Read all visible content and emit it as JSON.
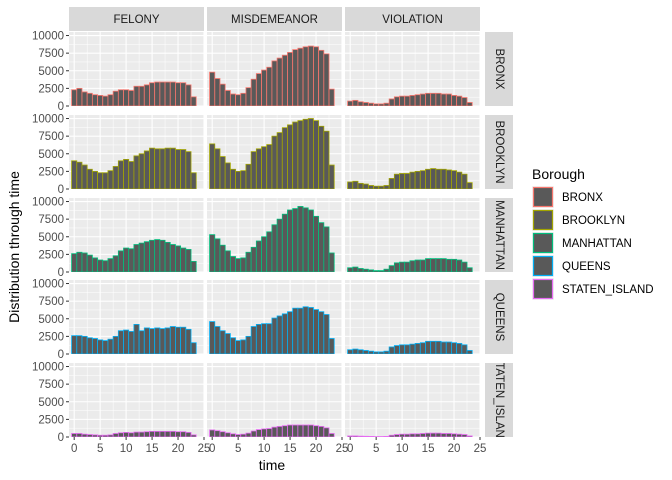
{
  "chart_data": {
    "type": "bar",
    "facet_cols": [
      "FELONY",
      "MISDEMEANOR",
      "VIOLATION"
    ],
    "facet_rows": [
      "BRONX",
      "BROOKLYN",
      "MANHATTAN",
      "QUEENS",
      "STATEN_ISLAND"
    ],
    "facet_row_labels": [
      "BRONX",
      "BROOKLYN",
      "MANHATTAN",
      "QUEENS",
      "TATEN_ISLAN"
    ],
    "xlabel": "time",
    "ylabel": "Distribution through time",
    "xlim": [
      -1,
      25
    ],
    "ylim": [
      0,
      10500
    ],
    "x_ticks": [
      0,
      5,
      10,
      15,
      20,
      25
    ],
    "y_ticks": [
      0,
      2500,
      5000,
      7500,
      10000
    ],
    "legend": {
      "title": "Borough",
      "position": "right",
      "items": [
        "BRONX",
        "BROOKLYN",
        "MANHATTAN",
        "QUEENS",
        "STATEN_ISLAND"
      ]
    },
    "colors": {
      "fill": "#595959",
      "panel_bg": "#ebebeb",
      "strip_bg": "#d9d9d9",
      "grid": "#ffffff",
      "BRONX": "#F8766D",
      "BROOKLYN": "#A3A500",
      "MANHATTAN": "#00BF7D",
      "QUEENS": "#00B0F6",
      "STATEN_ISLAND": "#E76BF3"
    },
    "x": [
      0,
      1,
      2,
      3,
      4,
      5,
      6,
      7,
      8,
      9,
      10,
      11,
      12,
      13,
      14,
      15,
      16,
      17,
      18,
      19,
      20,
      21,
      22,
      23
    ],
    "series": [
      {
        "row": "BRONX",
        "col": "FELONY",
        "values": [
          2300,
          2500,
          2000,
          1800,
          1600,
          1500,
          1400,
          1600,
          2100,
          2300,
          2300,
          2200,
          2800,
          2800,
          3000,
          3300,
          3400,
          3400,
          3400,
          3400,
          3300,
          3300,
          3000,
          1300
        ]
      },
      {
        "row": "BRONX",
        "col": "MISDEMEANOR",
        "values": [
          4800,
          3900,
          3100,
          2200,
          1700,
          1600,
          1800,
          2600,
          3800,
          4600,
          5100,
          5500,
          6400,
          6800,
          7200,
          7600,
          8000,
          8200,
          8400,
          8500,
          8400,
          7900,
          7400,
          2400
        ]
      },
      {
        "row": "BRONX",
        "col": "VIOLATION",
        "values": [
          700,
          800,
          600,
          500,
          400,
          300,
          300,
          400,
          1000,
          1300,
          1400,
          1400,
          1500,
          1600,
          1700,
          1800,
          1800,
          1800,
          1700,
          1700,
          1500,
          1400,
          1200,
          500
        ]
      },
      {
        "row": "BROOKLYN",
        "col": "FELONY",
        "values": [
          4000,
          3800,
          3400,
          2800,
          2500,
          2300,
          2300,
          2600,
          3200,
          4000,
          4200,
          3900,
          4700,
          5000,
          5400,
          5800,
          5700,
          5700,
          5800,
          5800,
          5600,
          5600,
          5300,
          2300
        ]
      },
      {
        "row": "BROOKLYN",
        "col": "MISDEMEANOR",
        "values": [
          6400,
          5700,
          4600,
          3700,
          2800,
          2500,
          2600,
          3500,
          5300,
          5700,
          6000,
          6300,
          7500,
          8000,
          8700,
          9100,
          9500,
          9700,
          9900,
          10000,
          9700,
          8900,
          8200,
          3400
        ]
      },
      {
        "row": "BROOKLYN",
        "col": "VIOLATION",
        "values": [
          1000,
          1100,
          800,
          700,
          500,
          400,
          400,
          500,
          1500,
          2100,
          2200,
          2200,
          2400,
          2500,
          2600,
          2800,
          2900,
          2800,
          2800,
          2700,
          2600,
          2400,
          2100,
          900
        ]
      },
      {
        "row": "MANHATTAN",
        "col": "FELONY",
        "values": [
          2600,
          2800,
          2700,
          2400,
          2000,
          1700,
          1600,
          1900,
          2300,
          3000,
          3400,
          3300,
          3900,
          4100,
          4300,
          4500,
          4600,
          4500,
          4200,
          3900,
          3700,
          3400,
          3200,
          1500
        ]
      },
      {
        "row": "MANHATTAN",
        "col": "MISDEMEANOR",
        "values": [
          5300,
          4700,
          3800,
          3000,
          2200,
          1900,
          2000,
          2800,
          3500,
          4400,
          5000,
          5700,
          6700,
          7500,
          8200,
          8800,
          9000,
          9300,
          9100,
          8800,
          7900,
          7000,
          6400,
          2700
        ]
      },
      {
        "row": "MANHATTAN",
        "col": "VIOLATION",
        "values": [
          600,
          700,
          500,
          400,
          300,
          200,
          200,
          400,
          900,
          1300,
          1400,
          1400,
          1600,
          1700,
          1700,
          1900,
          1900,
          1900,
          1900,
          1800,
          1800,
          1700,
          1400,
          600
        ]
      },
      {
        "row": "QUEENS",
        "col": "FELONY",
        "values": [
          2600,
          2600,
          2500,
          2300,
          2200,
          2000,
          1900,
          2100,
          2500,
          3300,
          3400,
          3200,
          4200,
          3300,
          3700,
          3600,
          3700,
          3600,
          3700,
          3900,
          3800,
          3800,
          3500,
          1600
        ]
      },
      {
        "row": "QUEENS",
        "col": "MISDEMEANOR",
        "values": [
          4600,
          3900,
          3300,
          2900,
          2300,
          1900,
          2000,
          2500,
          3900,
          4200,
          4300,
          4300,
          5100,
          5400,
          5700,
          6000,
          6500,
          6500,
          6700,
          6600,
          6300,
          6000,
          5600,
          2200
        ]
      },
      {
        "row": "QUEENS",
        "col": "VIOLATION",
        "values": [
          600,
          700,
          600,
          500,
          400,
          300,
          300,
          400,
          1000,
          1200,
          1300,
          1300,
          1400,
          1500,
          1600,
          1800,
          1800,
          1800,
          1700,
          1700,
          1600,
          1500,
          1300,
          500
        ]
      },
      {
        "row": "STATEN_ISLAND",
        "col": "FELONY",
        "values": [
          500,
          500,
          400,
          350,
          300,
          250,
          250,
          300,
          500,
          600,
          650,
          600,
          700,
          700,
          750,
          800,
          800,
          800,
          800,
          800,
          750,
          750,
          650,
          300
        ]
      },
      {
        "row": "STATEN_ISLAND",
        "col": "MISDEMEANOR",
        "values": [
          1000,
          900,
          750,
          600,
          450,
          350,
          400,
          550,
          850,
          1050,
          1150,
          1200,
          1400,
          1500,
          1600,
          1700,
          1700,
          1700,
          1700,
          1700,
          1600,
          1500,
          1300,
          500
        ]
      },
      {
        "row": "STATEN_ISLAND",
        "col": "VIOLATION",
        "values": [
          150,
          150,
          120,
          100,
          80,
          60,
          60,
          80,
          250,
          350,
          400,
          400,
          450,
          450,
          500,
          550,
          550,
          550,
          500,
          500,
          450,
          400,
          350,
          150
        ]
      }
    ]
  }
}
